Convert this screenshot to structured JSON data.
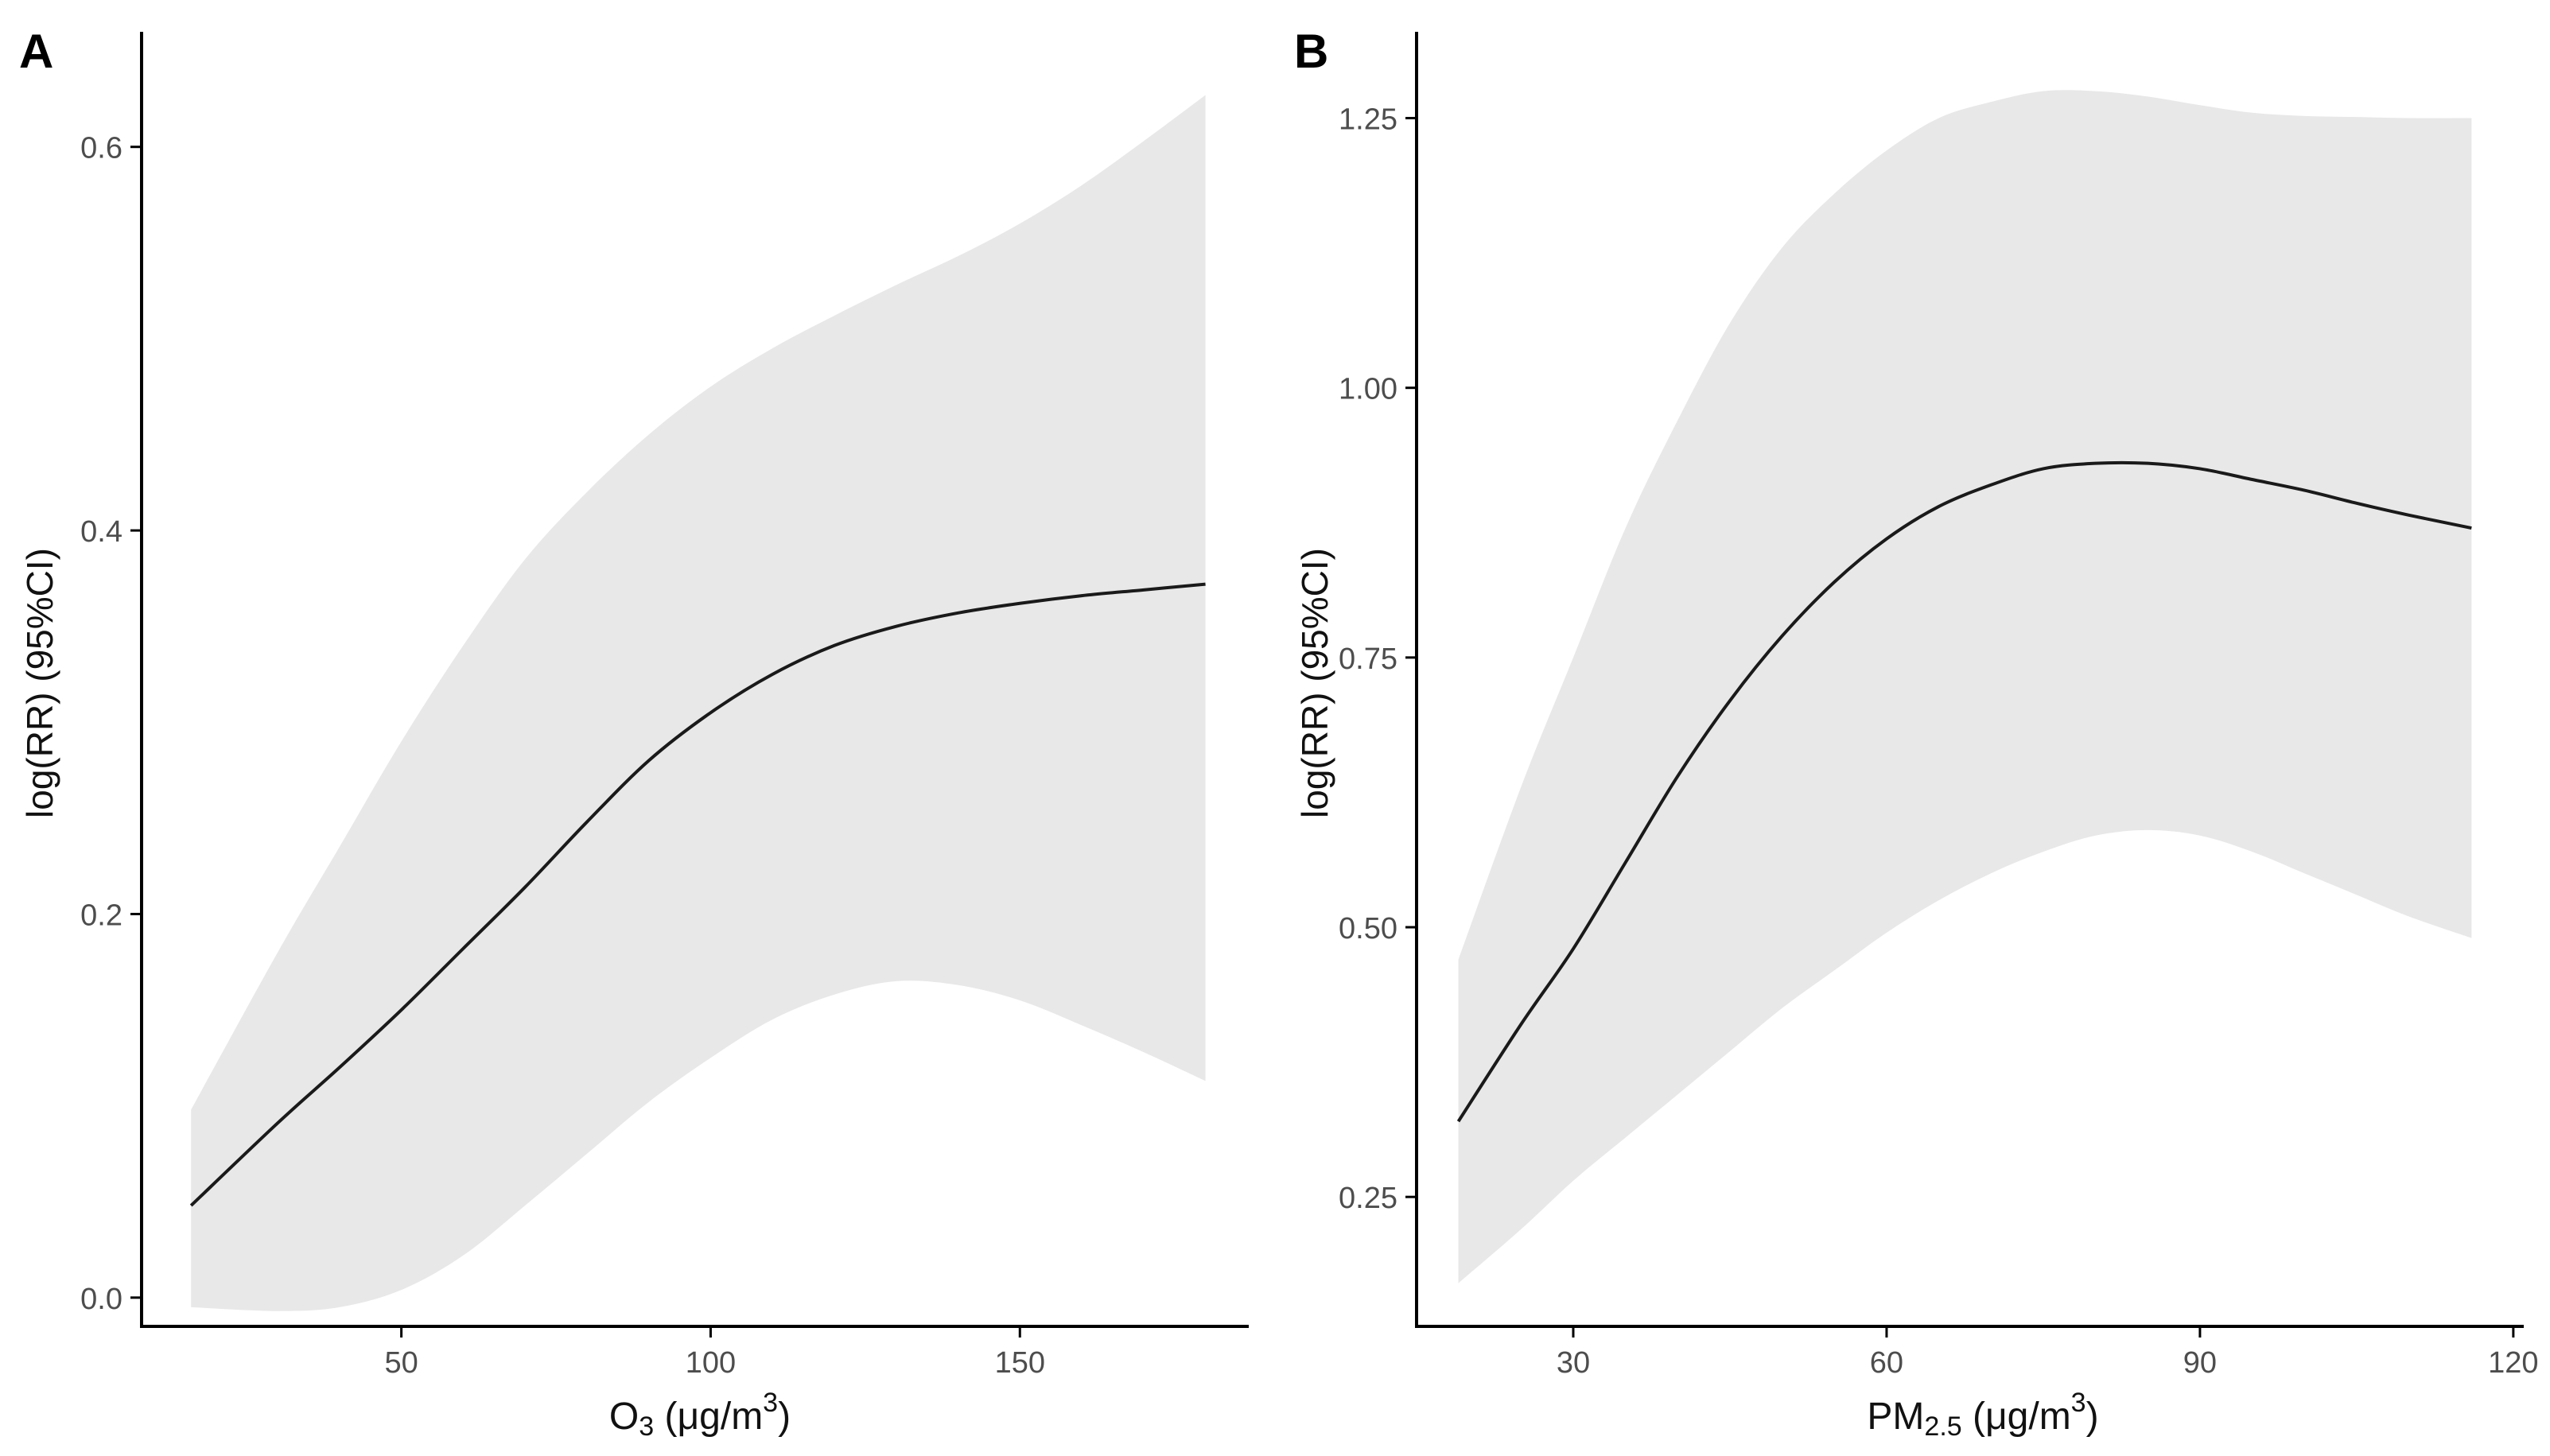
{
  "chart_data": [
    {
      "type": "line",
      "panel_label": "A",
      "title": "",
      "xlabel": {
        "base": "O",
        "sub": "3",
        "unit_pre": "(μg/m",
        "unit_sup": "3",
        "unit_post": ")"
      },
      "ylabel": "log(RR) (95%CI)",
      "xlim": [
        8,
        187
      ],
      "ylim": [
        -0.015,
        0.66
      ],
      "xticks": [
        50,
        100,
        150
      ],
      "yticks": [
        0.0,
        0.2,
        0.4,
        0.6
      ],
      "ytick_labels": [
        "0.0",
        "0.2",
        "0.4",
        "0.6"
      ],
      "grid": false,
      "series": [
        {
          "name": "estimate",
          "x": [
            16,
            30,
            40,
            50,
            60,
            70,
            80,
            90,
            100,
            110,
            120,
            130,
            140,
            150,
            160,
            170,
            180
          ],
          "y": [
            0.048,
            0.091,
            0.12,
            0.15,
            0.182,
            0.214,
            0.248,
            0.28,
            0.305,
            0.325,
            0.34,
            0.35,
            0.357,
            0.362,
            0.366,
            0.369,
            0.372
          ],
          "lower": [
            -0.005,
            -0.007,
            -0.005,
            0.004,
            0.022,
            0.048,
            0.075,
            0.102,
            0.125,
            0.145,
            0.158,
            0.165,
            0.163,
            0.155,
            0.142,
            0.128,
            0.113
          ],
          "upper": [
            0.098,
            0.18,
            0.235,
            0.29,
            0.34,
            0.385,
            0.42,
            0.45,
            0.475,
            0.495,
            0.512,
            0.528,
            0.543,
            0.56,
            0.58,
            0.603,
            0.627
          ]
        }
      ]
    },
    {
      "type": "line",
      "panel_label": "B",
      "title": "",
      "xlabel": {
        "base": "PM",
        "sub": "2.5",
        "unit_pre": "(μg/m",
        "unit_sup": "3",
        "unit_post": ")"
      },
      "ylabel": "log(RR) (95%CI)",
      "xlim": [
        15,
        121
      ],
      "ylim": [
        0.13,
        1.33
      ],
      "xticks": [
        30,
        60,
        90,
        120
      ],
      "yticks": [
        0.25,
        0.5,
        0.75,
        1.0,
        1.25
      ],
      "ytick_labels": [
        "0.25",
        "0.50",
        "0.75",
        "1.00",
        "1.25"
      ],
      "grid": false,
      "series": [
        {
          "name": "estimate",
          "x": [
            19,
            25,
            30,
            35,
            40,
            45,
            50,
            55,
            60,
            65,
            70,
            75,
            80,
            85,
            90,
            95,
            100,
            105,
            110,
            116
          ],
          "y": [
            0.32,
            0.41,
            0.48,
            0.56,
            0.64,
            0.71,
            0.77,
            0.82,
            0.86,
            0.89,
            0.91,
            0.925,
            0.93,
            0.93,
            0.925,
            0.915,
            0.905,
            0.893,
            0.882,
            0.87
          ],
          "lower": [
            0.17,
            0.22,
            0.265,
            0.305,
            0.345,
            0.385,
            0.425,
            0.46,
            0.495,
            0.525,
            0.55,
            0.57,
            0.585,
            0.59,
            0.585,
            0.57,
            0.55,
            0.53,
            0.51,
            0.49
          ],
          "upper": [
            0.47,
            0.63,
            0.75,
            0.87,
            0.97,
            1.06,
            1.13,
            1.18,
            1.22,
            1.25,
            1.265,
            1.275,
            1.275,
            1.27,
            1.262,
            1.255,
            1.252,
            1.251,
            1.25,
            1.25
          ]
        }
      ]
    }
  ],
  "colors": {
    "ribbon": "#e8e8e8",
    "line": "#1a1a1a",
    "axis": "#000000",
    "tick_label": "#4d4d4d"
  }
}
